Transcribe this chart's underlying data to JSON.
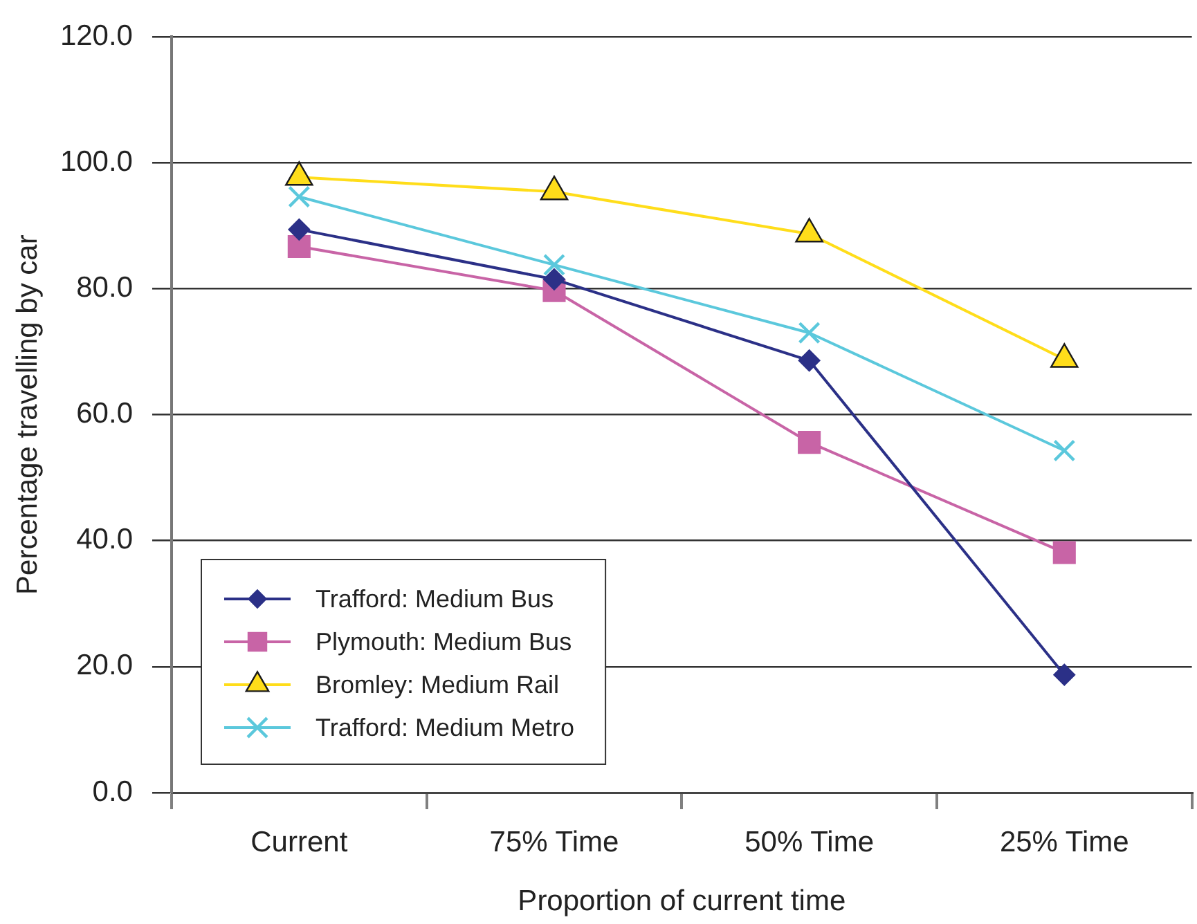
{
  "chart_data": {
    "type": "line",
    "xlabel": "Proportion of current time",
    "ylabel": "Percentage travelling by car",
    "categories": [
      "Current",
      "75% Time",
      "50% Time",
      "25% Time"
    ],
    "series": [
      {
        "name": "Trafford: Medium Bus",
        "color": "#2b3087",
        "marker": "diamond",
        "values": [
          89.4,
          81.5,
          68.6,
          18.7
        ]
      },
      {
        "name": "Plymouth: Medium Bus",
        "color": "#c864a6",
        "marker": "square",
        "values": [
          86.7,
          79.7,
          55.6,
          38.1
        ]
      },
      {
        "name": "Bromley: Medium Rail",
        "color": "#ffdd1a",
        "marker": "triangle",
        "values": [
          97.7,
          95.4,
          88.7,
          68.8
        ]
      },
      {
        "name": "Trafford: Medium Metro",
        "color": "#5bc8dc",
        "marker": "cross",
        "values": [
          94.6,
          83.8,
          73.0,
          54.3
        ]
      }
    ],
    "ylim": [
      0,
      120
    ],
    "yticks": [
      {
        "value": 0,
        "label": "0.0"
      },
      {
        "value": 20,
        "label": "20.0"
      },
      {
        "value": 40,
        "label": "40.0"
      },
      {
        "value": 60,
        "label": "60.0"
      },
      {
        "value": 80,
        "label": "80.0"
      },
      {
        "value": 100,
        "label": "100.0"
      },
      {
        "value": 120,
        "label": "120.0"
      }
    ],
    "grid": "y",
    "legend": "bottom left",
    "line_style": "solid"
  }
}
